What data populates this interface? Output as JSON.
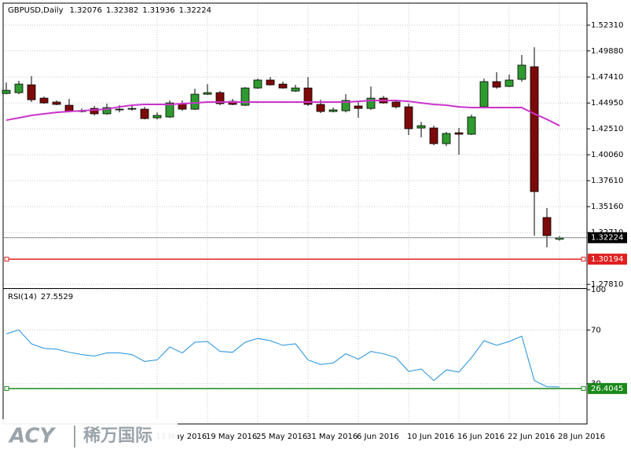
{
  "chart_data": [
    {
      "type": "candlestick",
      "title": "GBPUSD,Daily",
      "categories": [
        null,
        null,
        null,
        null,
        null,
        null,
        null,
        null,
        null,
        null,
        null,
        null,
        "13 May 2016",
        null,
        null,
        null,
        "19 May 2016",
        null,
        null,
        null,
        "25 May 2016",
        null,
        null,
        null,
        "31 May 2016",
        null,
        null,
        null,
        "6 Jun 2016",
        null,
        null,
        null,
        "10 Jun 2016",
        null,
        null,
        null,
        "16 Jun 2016",
        null,
        null,
        null,
        "22 Jun 2016",
        null,
        null,
        null,
        "28 Jun 2016"
      ],
      "open": [
        1.4585,
        1.4593,
        1.4667,
        1.4541,
        1.4504,
        1.4474,
        1.4415,
        1.4444,
        1.4393,
        1.443,
        1.4437,
        1.4437,
        1.4355,
        1.4363,
        1.4489,
        1.4437,
        1.4578,
        1.4593,
        1.4511,
        1.4474,
        1.4637,
        1.4712,
        1.4674,
        1.4608,
        1.4637,
        1.4482,
        1.4415,
        1.4422,
        1.4467,
        1.4444,
        1.4541,
        1.4504,
        1.4459,
        1.4259,
        1.4259,
        1.4111,
        1.4214,
        1.42,
        1.4459,
        1.4697,
        1.4652,
        1.4719,
        1.4838,
        1.3413,
        1.32076
      ],
      "high": [
        1.4689,
        1.4704,
        1.4749,
        1.4556,
        1.4519,
        1.4534,
        1.4444,
        1.4467,
        1.4489,
        1.4474,
        1.4474,
        1.4459,
        1.4407,
        1.4519,
        1.4519,
        1.463,
        1.4674,
        1.4608,
        1.4534,
        1.4645,
        1.4726,
        1.4741,
        1.4697,
        1.4667,
        1.4741,
        1.4526,
        1.4452,
        1.4578,
        1.4504,
        1.4652,
        1.4563,
        1.4526,
        1.4489,
        1.4318,
        1.4281,
        1.4222,
        1.4259,
        1.4385,
        1.4726,
        1.4786,
        1.4764,
        1.4949,
        1.5023,
        1.3502,
        1.32382
      ],
      "low": [
        1.4578,
        1.4578,
        1.4504,
        1.4489,
        1.4474,
        1.4407,
        1.4407,
        1.4378,
        1.4385,
        1.4407,
        1.4422,
        1.4341,
        1.4341,
        1.4355,
        1.4422,
        1.443,
        1.4571,
        1.4474,
        1.4474,
        1.4467,
        1.463,
        1.466,
        1.463,
        1.46,
        1.4467,
        1.44,
        1.4407,
        1.4407,
        1.4355,
        1.443,
        1.4489,
        1.4444,
        1.4192,
        1.417,
        1.4096,
        1.4088,
        1.4007,
        1.4192,
        1.4444,
        1.463,
        1.4645,
        1.4697,
        1.3242,
        1.3131,
        1.31936
      ],
      "close": [
        1.4615,
        1.4674,
        1.4526,
        1.4496,
        1.4482,
        1.4415,
        1.4422,
        1.4393,
        1.4452,
        1.4437,
        1.4444,
        1.4348,
        1.4378,
        1.4496,
        1.4437,
        1.4578,
        1.4593,
        1.4489,
        1.4482,
        1.4637,
        1.4712,
        1.4667,
        1.4637,
        1.4637,
        1.4482,
        1.4415,
        1.443,
        1.4519,
        1.4444,
        1.4541,
        1.4496,
        1.4459,
        1.4252,
        1.4281,
        1.4111,
        1.4207,
        1.42,
        1.4363,
        1.4697,
        1.4645,
        1.4712,
        1.4853,
        1.3658,
        1.3242,
        1.32224
      ],
      "up_color": "#2f9a2f",
      "down_color": "#7d0a0a",
      "moving_average": {
        "color": "#cc33cc",
        "values": [
          1.4333,
          1.4355,
          1.4378,
          1.4393,
          1.4407,
          1.4415,
          1.4422,
          1.443,
          1.4437,
          1.4459,
          1.4474,
          1.4482,
          1.4482,
          1.4482,
          1.4489,
          1.4496,
          1.4504,
          1.4504,
          1.4504,
          1.4504,
          1.4504,
          1.4504,
          1.4504,
          1.4504,
          1.4504,
          1.4504,
          1.4504,
          1.4504,
          1.4511,
          1.4519,
          1.4519,
          1.4519,
          1.4511,
          1.4496,
          1.4482,
          1.4474,
          1.4459,
          1.4452,
          1.4452,
          1.4452,
          1.4452,
          1.4452,
          1.4393,
          1.4341,
          1.4281
        ]
      },
      "ylim": [
        1.2753,
        1.5439
      ],
      "yticks": [
        {
          "value": 1.5231,
          "label": "1.52310"
        },
        {
          "value": 1.4988,
          "label": "1.49880"
        },
        {
          "value": 1.4741,
          "label": "1.47410"
        },
        {
          "value": 1.4495,
          "label": "1.44950"
        },
        {
          "value": 1.4251,
          "label": "1.42510"
        },
        {
          "value": 1.4006,
          "label": "1.40060"
        },
        {
          "value": 1.3761,
          "label": "1.37610"
        },
        {
          "value": 1.3516,
          "label": "1.35160"
        },
        {
          "value": 1.3271,
          "label": "1.32710"
        },
        {
          "value": 1.2781,
          "label": "1.27810"
        }
      ],
      "levels": [
        1.30194
      ],
      "level_color": "#e02020",
      "grid": true
    },
    {
      "type": "line",
      "title": "RSI(14)",
      "color": "#1e8fe0",
      "values": [
        67.1,
        70.0,
        59.7,
        56.3,
        55.7,
        53.4,
        51.7,
        50.6,
        52.9,
        52.9,
        51.7,
        46.6,
        47.7,
        57.4,
        52.9,
        60.9,
        61.4,
        54.0,
        53.4,
        60.9,
        63.7,
        62.0,
        58.6,
        59.7,
        47.7,
        44.3,
        45.4,
        52.3,
        48.3,
        54.0,
        52.3,
        49.4,
        39.1,
        40.9,
        32.3,
        40.3,
        38.6,
        49.4,
        62.0,
        58.6,
        61.4,
        65.4,
        32.3,
        27.7,
        27.5529
      ],
      "ylim": [
        0,
        100
      ],
      "yticks": [
        100,
        70,
        30
      ],
      "levels": [
        26.4045
      ],
      "level_color": "#1a8a1a",
      "grid": true
    }
  ],
  "logo": {
    "brand": "ACY",
    "name": "稀万国际"
  }
}
